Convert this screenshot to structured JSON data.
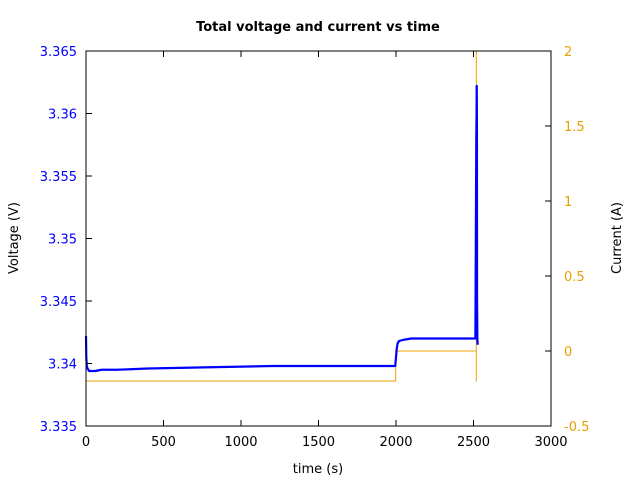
{
  "chart_data": {
    "type": "line",
    "title": "Total voltage and current vs time",
    "xlabel": "time (s)",
    "ylabel_left": "Voltage (V)",
    "ylabel_right": "Current (A)",
    "xlim": [
      0,
      3000
    ],
    "ylim_left": [
      3.335,
      3.365
    ],
    "ylim_right": [
      -0.5,
      2
    ],
    "x_ticks": [
      0,
      500,
      1000,
      1500,
      2000,
      2500,
      3000
    ],
    "x_tick_labels": [
      "0",
      "500",
      "1000",
      "1500",
      "2000",
      "2500",
      "3000"
    ],
    "y_left_ticks": [
      3.335,
      3.34,
      3.345,
      3.35,
      3.355,
      3.36,
      3.365
    ],
    "y_left_tick_labels": [
      "3.335",
      "3.34",
      "3.345",
      "3.35",
      "3.355",
      "3.36",
      "3.365"
    ],
    "y_right_ticks": [
      -0.5,
      0,
      0.5,
      1,
      1.5,
      2
    ],
    "y_right_tick_labels": [
      "-0.5",
      "0",
      "0.5",
      "1",
      "1.5",
      "2"
    ],
    "grid": false,
    "series": [
      {
        "axis": "left",
        "color": "#0000ff",
        "x": [
          0,
          2,
          5,
          10,
          20,
          40,
          60,
          100,
          200,
          400,
          800,
          1200,
          1600,
          1990,
          1995,
          2000,
          2005,
          2010,
          2020,
          2050,
          2100,
          2300,
          2500,
          2512,
          2513,
          2515,
          2518,
          2520,
          2520.5,
          2521,
          2522,
          2523,
          2525,
          2527
        ],
        "y": [
          3.3422,
          3.3405,
          3.3398,
          3.3396,
          3.3394,
          3.3394,
          3.3394,
          3.3395,
          3.3395,
          3.3396,
          3.3397,
          3.3398,
          3.3398,
          3.3398,
          3.3398,
          3.3405,
          3.3412,
          3.3416,
          3.3418,
          3.3419,
          3.342,
          3.342,
          3.342,
          3.342,
          3.344,
          3.35,
          3.358,
          3.3605,
          3.3622,
          3.3622,
          3.36,
          3.345,
          3.342,
          3.3415
        ]
      },
      {
        "axis": "right",
        "color": "#e8a000",
        "x": [
          0,
          1998,
          1998,
          2518,
          2518,
          2518,
          2518,
          2522
        ],
        "y": [
          -0.2,
          -0.2,
          0,
          0,
          2.0,
          2.0,
          -0.2,
          -0.2
        ]
      }
    ]
  }
}
